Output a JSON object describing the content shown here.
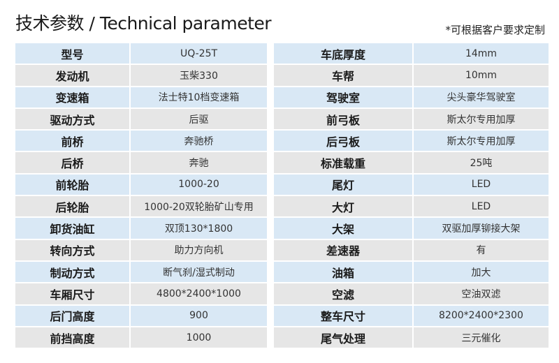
{
  "title": "技术参数 / Technical parameter",
  "note": "*可根据客户要求定制",
  "left": [
    [
      "型号",
      "UQ-25T"
    ],
    [
      "发动机",
      "玉柴330"
    ],
    [
      "变速箱",
      "法士特10档变速箱"
    ],
    [
      "驱动方式",
      "后驱"
    ],
    [
      "前桥",
      "奔驰桥"
    ],
    [
      "后桥",
      "奔驰"
    ],
    [
      "前轮胎",
      "1000-20"
    ],
    [
      "后轮胎",
      "1000-20双轮胎矿山专用"
    ],
    [
      "卸货油缸",
      "双顶130*1800"
    ],
    [
      "转向方式",
      "助力方向机"
    ],
    [
      "制动方式",
      "断气刹/湿式制动"
    ],
    [
      "车厢尺寸",
      "4800*2400*1000"
    ],
    [
      "后门高度",
      "900"
    ],
    [
      "前挡高度",
      "1000"
    ]
  ],
  "right": [
    [
      "车底厚度",
      "14mm"
    ],
    [
      "车帮",
      "10mm"
    ],
    [
      "驾驶室",
      "尖头豪华驾驶室"
    ],
    [
      "前弓板",
      "斯太尔专用加厚"
    ],
    [
      "后弓板",
      "斯太尔专用加厚"
    ],
    [
      "标准载重",
      "25吨"
    ],
    [
      "尾灯",
      "LED"
    ],
    [
      "大灯",
      "LED"
    ],
    [
      "大架",
      "双驱加厚铆接大架"
    ],
    [
      "差速器",
      "有"
    ],
    [
      "油箱",
      "加大"
    ],
    [
      "空滤",
      "空油双滤"
    ],
    [
      "整车尺寸",
      "8200*2400*2300"
    ],
    [
      "尾气处理",
      "三元催化"
    ]
  ]
}
